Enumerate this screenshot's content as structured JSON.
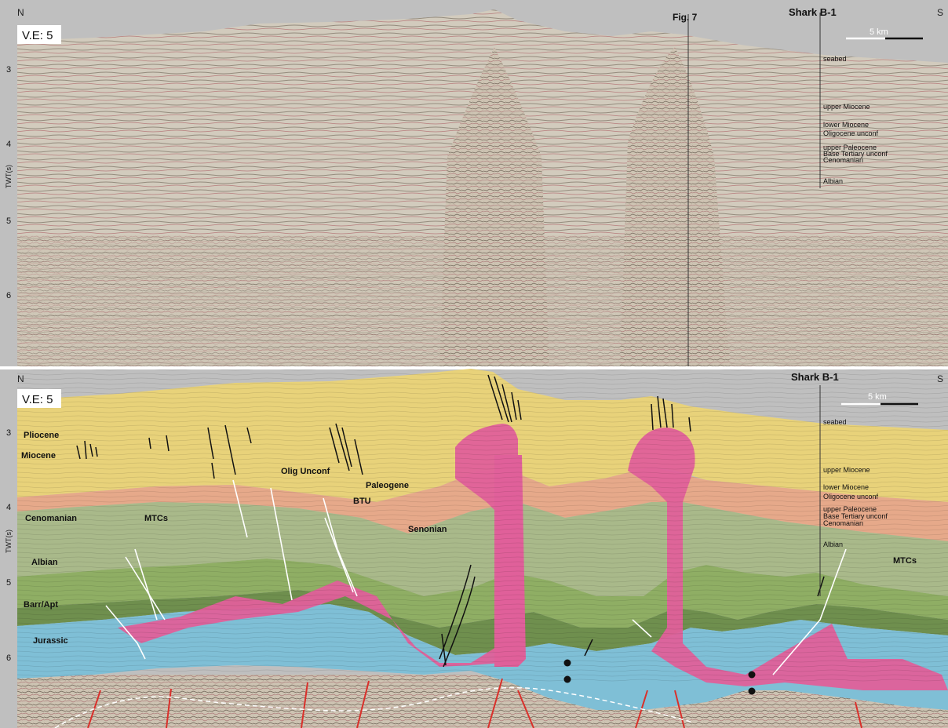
{
  "top_panel": {
    "north_label": "N",
    "south_label": "S",
    "ve_label": "V.E: 5",
    "fig_label": "Fig. 7",
    "well_label": "Shark B-1",
    "scale_label": "5 km",
    "axis_label": "TWT(s)",
    "ticks": [
      "3",
      "4",
      "5",
      "6"
    ],
    "well_tops": [
      "seabed",
      "upper Miocene",
      "lower Miocene",
      "Oligocene unconf",
      "upper Paleocene",
      "Base Tertiary unconf",
      "Cenomanian",
      "Albian"
    ]
  },
  "bottom_panel": {
    "north_label": "N",
    "south_label": "S",
    "ve_label": "V.E: 5",
    "well_label": "Shark B-1",
    "scale_label": "5 km",
    "axis_label": "TWT(s)",
    "ticks": [
      "3",
      "4",
      "5",
      "6"
    ],
    "well_tops": [
      "seabed",
      "upper Miocene",
      "lower Miocene",
      "Oligocene unconf",
      "upper Paleocene",
      "Base Tertiary unconf",
      "Cenomanian",
      "Albian"
    ],
    "units": {
      "pliocene": "Pliocene",
      "miocene": "Miocene",
      "cenomanian": "Cenomanian",
      "mtcs_left": "MTCs",
      "albian": "Albian",
      "barr_apt": "Barr/Apt",
      "jurassic": "Jurassic",
      "olig_unconf": "Olig Unconf",
      "paleogene": "Paleogene",
      "btu": "BTU",
      "senonian": "Senonian",
      "mtcs_right": "MTCs"
    }
  },
  "colors": {
    "pliocene_miocene": "#e8d27a",
    "paleogene": "#e6a98a",
    "cenomanian": "#a9b98a",
    "albian": "#8fae64",
    "barr_apt": "#6f8f4e",
    "jurassic": "#7fbfd6",
    "salt": "#e0609a",
    "basement": "#c9bfae",
    "seismic": "#cfc7b8",
    "fault_black": "#111111",
    "fault_white": "#ffffff",
    "fault_red": "#d9302b"
  }
}
